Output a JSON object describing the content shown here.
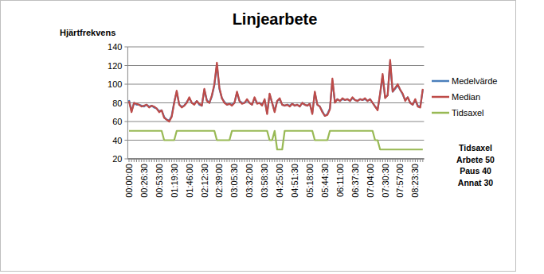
{
  "chart_data": {
    "type": "line",
    "title": "Linjearbete",
    "y_label": "Hjärtfrekvens",
    "categories": [
      "00:00:00",
      null,
      null,
      null,
      null,
      null,
      "00:26:30",
      null,
      null,
      null,
      null,
      null,
      "00:53:00",
      null,
      null,
      null,
      null,
      null,
      "01:19:30",
      null,
      null,
      null,
      null,
      null,
      "01:46:00",
      null,
      null,
      null,
      null,
      null,
      "02:12:30",
      null,
      null,
      null,
      null,
      null,
      "02:39:00",
      null,
      null,
      null,
      null,
      null,
      "03:05:30",
      null,
      null,
      null,
      null,
      null,
      "03:32:00",
      null,
      null,
      null,
      null,
      null,
      "03:58:30",
      null,
      null,
      null,
      null,
      null,
      "04:25:00",
      null,
      null,
      null,
      null,
      null,
      "04:51:30",
      null,
      null,
      null,
      null,
      null,
      "05:18:00",
      null,
      null,
      null,
      null,
      null,
      "05:44:30",
      null,
      null,
      null,
      null,
      null,
      "06:11:00",
      null,
      null,
      null,
      null,
      null,
      "06:37:30",
      null,
      null,
      null,
      null,
      null,
      "07:04:00",
      null,
      null,
      null,
      null,
      null,
      "07:30:30",
      null,
      null,
      null,
      null,
      null,
      "07:57:00",
      null,
      null,
      null,
      null,
      null,
      "08:23:30",
      null,
      null,
      null
    ],
    "series": [
      {
        "name": "Medelvärde",
        "color": "#4a7ebb",
        "values": [
          83,
          71,
          80,
          78,
          78,
          77,
          76,
          78,
          76,
          77,
          75,
          74,
          71,
          72,
          65,
          62,
          61,
          66,
          81,
          92,
          78,
          76,
          77,
          81,
          85,
          80,
          79,
          82,
          78,
          77,
          94,
          83,
          80,
          87,
          99,
          121,
          95,
          85,
          81,
          78,
          79,
          78,
          80,
          91,
          82,
          80,
          80,
          83,
          80,
          78,
          85,
          80,
          80,
          78,
          83,
          69,
          89,
          80,
          71,
          82,
          84,
          78,
          77,
          78,
          77,
          79,
          77,
          78,
          76,
          80,
          78,
          77,
          79,
          69,
          91,
          78,
          76,
          71,
          66,
          68,
          74,
          104,
          81,
          84,
          82,
          84,
          83,
          84,
          82,
          85,
          83,
          82,
          84,
          83,
          84,
          82,
          84,
          80,
          76,
          73,
          89,
          109,
          86,
          88,
          124,
          92,
          95,
          99,
          94,
          89,
          83,
          86,
          80,
          78,
          83,
          77,
          76,
          94
        ]
      },
      {
        "name": "Median",
        "color": "#be4b48",
        "values": [
          82,
          70,
          80,
          79,
          78,
          76,
          77,
          78,
          75,
          77,
          76,
          74,
          70,
          72,
          64,
          62,
          60,
          65,
          80,
          93,
          78,
          75,
          77,
          80,
          86,
          80,
          78,
          82,
          79,
          77,
          95,
          82,
          80,
          88,
          100,
          123,
          96,
          85,
          80,
          78,
          79,
          77,
          80,
          92,
          82,
          79,
          80,
          84,
          80,
          78,
          86,
          79,
          80,
          77,
          84,
          68,
          90,
          80,
          70,
          82,
          85,
          78,
          77,
          78,
          76,
          79,
          77,
          78,
          76,
          80,
          78,
          77,
          79,
          68,
          92,
          78,
          76,
          70,
          66,
          67,
          73,
          106,
          80,
          84,
          82,
          85,
          83,
          84,
          82,
          86,
          83,
          82,
          84,
          83,
          85,
          82,
          84,
          80,
          76,
          72,
          90,
          111,
          85,
          88,
          126,
          92,
          96,
          100,
          94,
          90,
          82,
          86,
          80,
          78,
          84,
          76,
          75,
          95
        ]
      },
      {
        "name": "Tidsaxel",
        "color": "#98b954",
        "values": [
          50,
          50,
          50,
          50,
          50,
          50,
          50,
          50,
          50,
          50,
          50,
          50,
          50,
          50,
          40,
          40,
          40,
          40,
          40,
          50,
          50,
          50,
          50,
          50,
          50,
          50,
          50,
          50,
          50,
          50,
          50,
          50,
          50,
          50,
          50,
          40,
          40,
          40,
          40,
          40,
          40,
          50,
          50,
          50,
          50,
          50,
          50,
          50,
          50,
          50,
          50,
          50,
          50,
          50,
          50,
          50,
          40,
          40,
          50,
          30,
          30,
          30,
          50,
          50,
          50,
          50,
          50,
          50,
          50,
          50,
          50,
          50,
          50,
          50,
          40,
          40,
          40,
          40,
          40,
          40,
          50,
          50,
          50,
          50,
          50,
          50,
          50,
          50,
          50,
          50,
          50,
          50,
          50,
          50,
          50,
          50,
          50,
          50,
          40,
          40,
          30,
          30,
          30,
          30,
          30,
          30,
          30,
          30,
          30,
          30,
          30,
          30,
          30,
          30,
          30,
          30,
          30,
          30
        ]
      }
    ],
    "ylim": [
      20,
      140
    ],
    "yticks": [
      20,
      40,
      60,
      80,
      100,
      120,
      140
    ],
    "grid": true,
    "legend": "right",
    "annotations": [
      "Tidsaxel",
      "Arbete 50",
      "Paus 40",
      "Annat 30"
    ]
  }
}
